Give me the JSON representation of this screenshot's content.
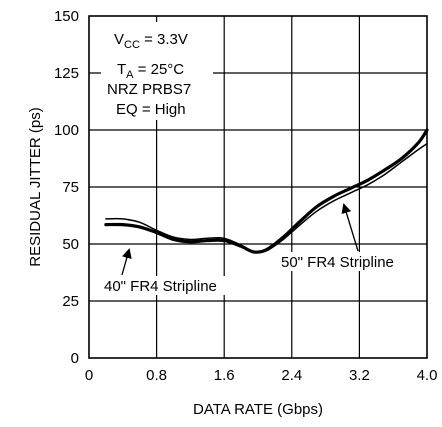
{
  "chart_data": {
    "type": "line",
    "xlabel": "DATA RATE (Gbps)",
    "ylabel": "RESIDUAL JITTER (ps)",
    "xlim": [
      0,
      4.0
    ],
    "ylim": [
      0,
      150
    ],
    "x_tick_labels": [
      "0",
      "0.8",
      "1.6",
      "2.4",
      "3.2",
      "4.0"
    ],
    "x_tick_values": [
      0,
      0.8,
      1.6,
      2.4,
      3.2,
      4.0
    ],
    "y_tick_labels": [
      "0",
      "25",
      "50",
      "75",
      "100",
      "125",
      "150"
    ],
    "y_tick_values": [
      0,
      25,
      50,
      75,
      100,
      125,
      150
    ],
    "grid": true,
    "conditions": {
      "vcc_main": "V",
      "vcc_sub": "CC",
      "vcc_value": " = 3.3V",
      "ta_main": "T",
      "ta_sub": "A",
      "ta_value": " = 25°C",
      "pattern": "NRZ PRBS7",
      "eq": "EQ = High"
    },
    "series": [
      {
        "name": "40\" FR4 Stripline",
        "x": [
          0.2,
          0.4,
          0.6,
          0.8,
          1.0,
          1.2,
          1.4,
          1.6,
          1.8,
          1.95,
          2.1,
          2.3,
          2.5,
          2.7,
          2.9,
          3.1,
          3.3,
          3.5,
          3.7,
          3.9,
          4.0
        ],
        "values": [
          58.5,
          58.5,
          57.5,
          55,
          52,
          51,
          51.5,
          51.5,
          49,
          46.5,
          47.5,
          53,
          60,
          66.5,
          71,
          74.5,
          78,
          82.5,
          87.5,
          94.5,
          100
        ]
      },
      {
        "name": "50\" FR4 Stripline",
        "x": [
          0.2,
          0.4,
          0.6,
          0.8,
          1.0,
          1.2,
          1.4,
          1.6,
          1.8,
          1.95,
          2.1,
          2.3,
          2.5,
          2.7,
          2.9,
          3.1,
          3.3,
          3.5,
          3.7,
          3.9,
          4.0
        ],
        "values": [
          61,
          61,
          59.5,
          56,
          53,
          52,
          52.5,
          52.5,
          49.5,
          46.5,
          47,
          52,
          58.5,
          64.5,
          69,
          72.5,
          76,
          80.5,
          86,
          91.5,
          94
        ]
      }
    ],
    "annotations": [
      {
        "text": "40\" FR4 Stripline",
        "target_series": "40\" FR4 Stripline"
      },
      {
        "text": "50\" FR4 Stripline",
        "target_series": "50\" FR4 Stripline"
      }
    ]
  }
}
